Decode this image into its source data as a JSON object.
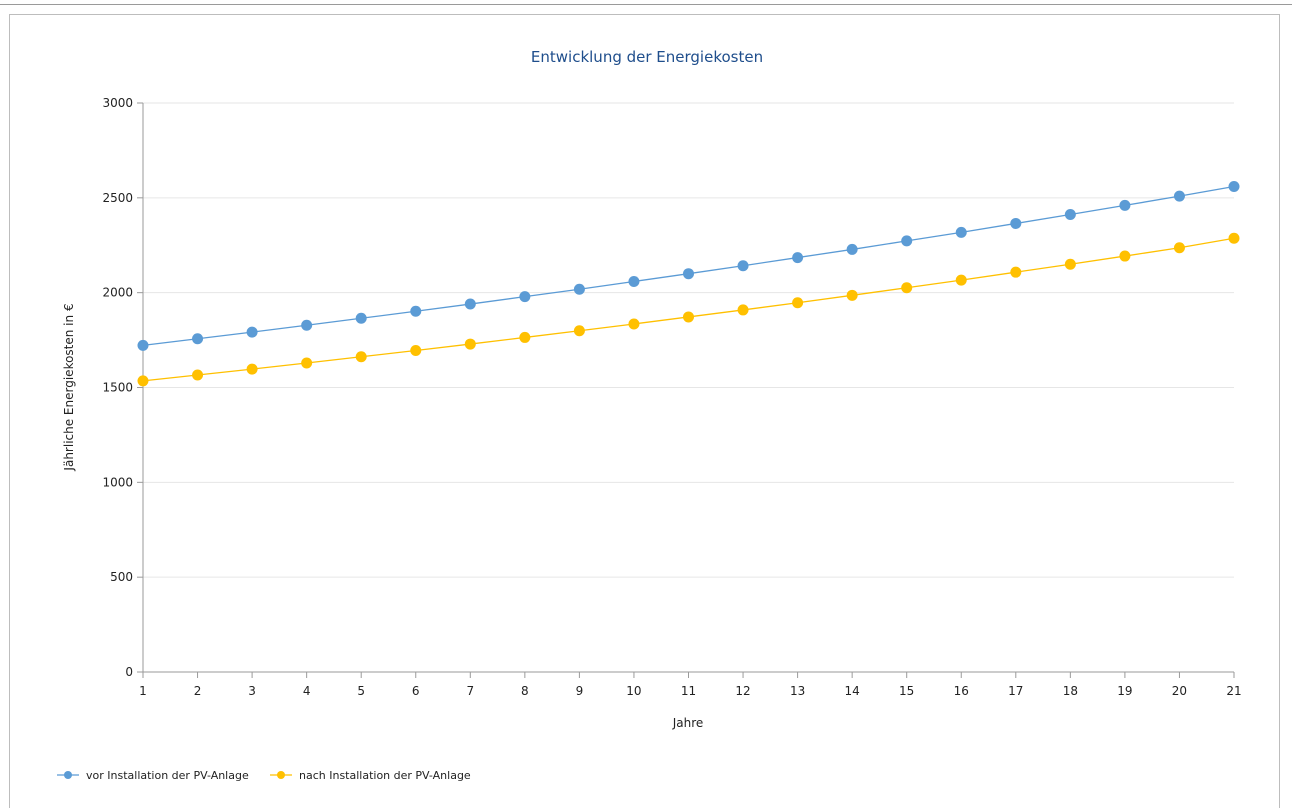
{
  "chart_data": {
    "type": "line",
    "title": "Entwicklung der Energiekosten",
    "xlabel": "Jahre",
    "ylabel": "Jährliche Energiekosten in €",
    "ylim": [
      0,
      3000
    ],
    "yticks": [
      0,
      500,
      1000,
      1500,
      2000,
      2500,
      3000
    ],
    "x": [
      1,
      2,
      3,
      4,
      5,
      6,
      7,
      8,
      9,
      10,
      11,
      12,
      13,
      14,
      15,
      16,
      17,
      18,
      19,
      20,
      21
    ],
    "grid": true,
    "legend_position": "bottom-left",
    "series": [
      {
        "name": "vor Installation der PV-Anlage",
        "color": "#5b9bd5",
        "values": [
          1722,
          1757,
          1792,
          1828,
          1865,
          1902,
          1940,
          1979,
          2018,
          2059,
          2100,
          2142,
          2185,
          2228,
          2273,
          2318,
          2365,
          2412,
          2460,
          2509,
          2560
        ]
      },
      {
        "name": "nach Installation der PV-Anlage",
        "color": "#ffc000",
        "values": [
          1535,
          1566,
          1597,
          1629,
          1662,
          1695,
          1729,
          1764,
          1799,
          1835,
          1872,
          1909,
          1947,
          1986,
          2026,
          2066,
          2108,
          2150,
          2193,
          2237,
          2287
        ]
      }
    ]
  }
}
